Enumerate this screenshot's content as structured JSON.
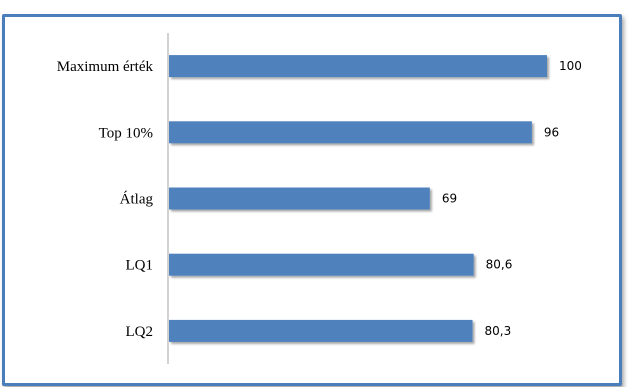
{
  "chart_data": {
    "type": "bar",
    "orientation": "horizontal",
    "categories": [
      "Maximum érték",
      "Top 10%",
      "Átlag",
      "LQ1",
      "LQ2"
    ],
    "values": [
      100,
      96,
      69,
      80.6,
      80.3
    ],
    "value_labels": [
      "100",
      "96",
      "69",
      "80,6",
      "80,3"
    ],
    "title": "",
    "xlabel": "",
    "ylabel": "",
    "xlim": [
      0,
      100
    ],
    "grid": false,
    "legend": "none",
    "bar_color": "#4f81bd",
    "frame_color": "#4a7ebb"
  }
}
